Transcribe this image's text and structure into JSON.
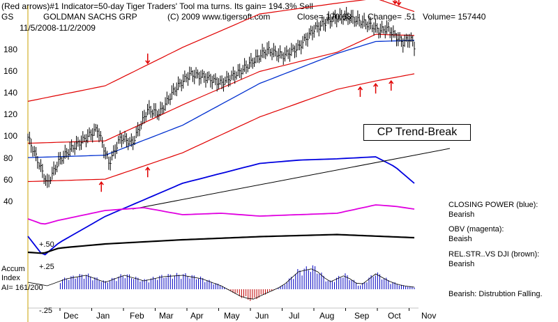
{
  "header": {
    "line1": "(Red arrows)#1 Indicator=50-day Tiger Traders' Tool ma turns. Its gain= 194.3% Sell",
    "ticker": "GS",
    "company": "GOLDMAN SACHS GRP",
    "copyright": "(C) 2009 www.tigersoft.com",
    "close": "Close= 170.68",
    "change": "Change= .51",
    "volume": "Volume= 157440",
    "date_range": "11/5/2008-11/2/2009"
  },
  "annotation": {
    "trend_break": "CP Trend-Break"
  },
  "legend": {
    "closing_power_label": "CLOSING POWER (blue):",
    "closing_power_status": "Bearish",
    "obv_label": "OBV (magenta):",
    "obv_status": "Beaish",
    "relstr_label": "REL.STR..VS DJI (brown):",
    "relstr_status": "Bearish",
    "bearish_note": "Bearish: Distrubtion Falling."
  },
  "accum": {
    "label1": "Accum",
    "label2": "Index",
    "ai_value": "AI= 161/200",
    "tick_top": "+.50",
    "tick_mid": "+.25",
    "tick_bot": "-.25"
  },
  "chart_data": {
    "type": "line",
    "title": "GOLDMAN SACHS GRP",
    "y_ticks": [
      "180",
      "160",
      "140",
      "120",
      "100",
      "80",
      "60",
      "40"
    ],
    "y_tick_values": [
      180,
      160,
      140,
      120,
      100,
      80,
      60,
      40
    ],
    "ylim": [
      35,
      205
    ],
    "months": [
      "Dec",
      "Jan",
      "Feb",
      "Mar",
      "Apr",
      "May",
      "Jun",
      "Jul",
      "Aug",
      "Sep",
      "Oct",
      "Nov"
    ],
    "price": {
      "t": [
        0,
        0.03,
        0.05,
        0.08,
        0.11,
        0.14,
        0.18,
        0.21,
        0.24,
        0.27,
        0.31,
        0.34,
        0.38,
        0.42,
        0.46,
        0.5,
        0.55,
        0.58,
        0.62,
        0.66,
        0.7,
        0.74,
        0.78,
        0.82,
        0.86,
        0.89,
        0.91,
        0.93,
        0.95,
        0.97,
        0.99,
        1.0
      ],
      "values": [
        95,
        72,
        56,
        75,
        85,
        92,
        102,
        73,
        95,
        90,
        118,
        115,
        135,
        148,
        145,
        140,
        150,
        158,
        168,
        163,
        170,
        185,
        193,
        196,
        192,
        188,
        184,
        186,
        180,
        174,
        178,
        171
      ]
    },
    "upper_band": {
      "t": [
        0,
        0.2,
        0.4,
        0.6,
        0.8,
        0.9,
        1.0
      ],
      "values": [
        125,
        138,
        170,
        198,
        207,
        211,
        200
      ]
    },
    "lower_band": {
      "t": [
        0,
        0.2,
        0.4,
        0.6,
        0.8,
        0.9,
        1.0
      ],
      "values": [
        58,
        60,
        82,
        112,
        135,
        142,
        148
      ]
    },
    "ma_red": {
      "t": [
        0,
        0.2,
        0.4,
        0.6,
        0.8,
        0.9,
        1.0
      ],
      "values": [
        90,
        92,
        122,
        150,
        166,
        181,
        180
      ]
    },
    "ma_blue": {
      "t": [
        0,
        0.2,
        0.4,
        0.6,
        0.8,
        0.9,
        1.0
      ],
      "values": [
        78,
        80,
        105,
        140,
        165,
        175,
        176
      ]
    },
    "closing_power": {
      "t": [
        0,
        0.04,
        0.08,
        0.2,
        0.3,
        0.4,
        0.5,
        0.6,
        0.7,
        0.8,
        0.9,
        0.95,
        1.0
      ],
      "values": [
        -0.2,
        -0.5,
        -0.3,
        0.1,
        0.35,
        0.6,
        0.75,
        0.9,
        0.95,
        0.97,
        1.0,
        0.85,
        0.6
      ]
    },
    "obv": {
      "t": [
        0,
        0.04,
        0.08,
        0.2,
        0.3,
        0.4,
        0.5,
        0.6,
        0.7,
        0.8,
        0.9,
        0.95,
        1.0
      ],
      "values": [
        0.4,
        0.2,
        0.35,
        0.7,
        0.8,
        0.55,
        0.6,
        0.5,
        0.55,
        0.6,
        0.9,
        0.85,
        0.75
      ]
    },
    "rel_strength": {
      "t": [
        0,
        0.04,
        0.08,
        0.2,
        0.4,
        0.6,
        0.8,
        1.0
      ],
      "values": [
        0.1,
        0.05,
        0.3,
        0.5,
        0.7,
        0.85,
        0.95,
        0.8
      ]
    },
    "accum_index": {
      "t": [
        0,
        0.05,
        0.1,
        0.15,
        0.2,
        0.25,
        0.3,
        0.35,
        0.4,
        0.45,
        0.5,
        0.55,
        0.58,
        0.62,
        0.66,
        0.7,
        0.74,
        0.78,
        0.82,
        0.86,
        0.9,
        0.94,
        0.97,
        1.0
      ],
      "values": [
        0.1,
        0.05,
        0.15,
        0.2,
        0.1,
        0.2,
        0.12,
        0.18,
        0.2,
        0.15,
        0.05,
        -0.1,
        -0.15,
        -0.05,
        0.05,
        0.25,
        0.3,
        0.1,
        0.2,
        0.05,
        0.22,
        0.1,
        0.05,
        0.03
      ]
    },
    "sell_arrows_t": [
      0.31,
      0.88,
      0.92,
      0.95,
      0.96
    ],
    "buy_arrows_t": [
      0.19,
      0.31,
      0.86,
      0.9,
      0.94
    ]
  }
}
